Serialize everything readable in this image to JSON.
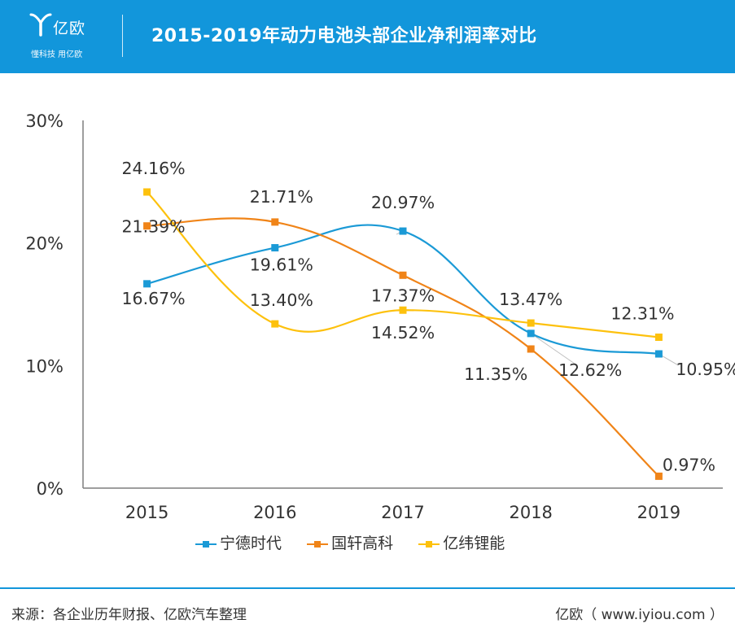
{
  "header": {
    "logo_name": "亿欧",
    "logo_slogan": "懂科技 用亿欧",
    "title": "2015-2019年动力电池头部企业净利润率对比"
  },
  "colors": {
    "header_bg": "#1296db",
    "series": [
      "#1b9ad6",
      "#f08418",
      "#fdc10d"
    ],
    "axis": "#7f7f7f",
    "text": "#333333"
  },
  "chart_data": {
    "type": "line",
    "title": "2015-2019年动力电池头部企业净利润率对比",
    "categories": [
      "2015",
      "2016",
      "2017",
      "2018",
      "2019"
    ],
    "y_ticks": [
      "0%",
      "10%",
      "20%",
      "30%"
    ],
    "ylim": [
      0,
      30
    ],
    "y_unit": "%",
    "smooth": true,
    "grid": false,
    "legend_position": "bottom",
    "series": [
      {
        "name": "宁德时代",
        "values": [
          16.67,
          19.61,
          20.97,
          12.62,
          10.95
        ],
        "labels": [
          "16.67%",
          "19.61%",
          "20.97%",
          "12.62%",
          "10.95%"
        ]
      },
      {
        "name": "国轩高科",
        "values": [
          21.39,
          21.71,
          17.37,
          11.35,
          0.97
        ],
        "labels": [
          "21.39%",
          "21.71%",
          "17.37%",
          "11.35%",
          "0.97%"
        ]
      },
      {
        "name": "亿纬锂能",
        "values": [
          24.16,
          13.4,
          14.52,
          13.47,
          12.31
        ],
        "labels": [
          "24.16%",
          "13.40%",
          "14.52%",
          "13.47%",
          "12.31%"
        ]
      }
    ]
  },
  "footer": {
    "source": "来源：各企业历年财报、亿欧汽车整理",
    "credit": "亿欧（ www.iyiou.com ）"
  }
}
